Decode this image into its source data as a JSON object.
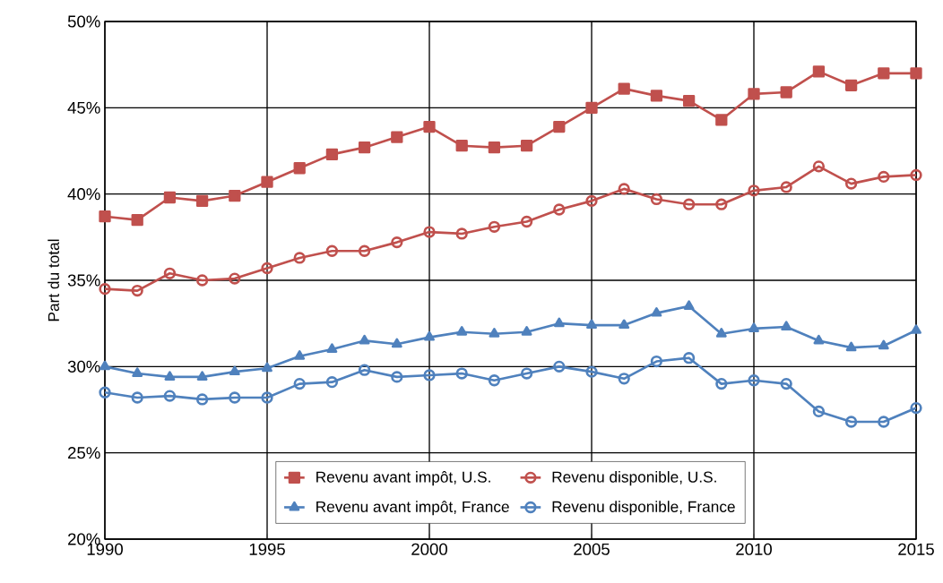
{
  "chart_data": {
    "type": "line",
    "ylabel": "Part du total",
    "x": [
      1990,
      1991,
      1992,
      1993,
      1994,
      1995,
      1996,
      1997,
      1998,
      1999,
      2000,
      2001,
      2002,
      2003,
      2004,
      2005,
      2006,
      2007,
      2008,
      2009,
      2010,
      2011,
      2012,
      2013,
      2014,
      2015
    ],
    "series": [
      {
        "name": "Revenu avant impôt, U.S.",
        "color": "#c0504d",
        "marker": "square",
        "values": [
          38.7,
          38.5,
          39.8,
          39.6,
          39.9,
          40.7,
          41.5,
          42.3,
          42.7,
          43.3,
          43.9,
          42.8,
          42.7,
          42.8,
          43.9,
          45.0,
          46.1,
          45.7,
          45.4,
          44.3,
          45.8,
          45.9,
          47.1,
          46.3,
          47.0,
          47.0
        ]
      },
      {
        "name": "Revenu disponible, U.S.",
        "color": "#c0504d",
        "marker": "circle",
        "values": [
          34.5,
          34.4,
          35.4,
          35.0,
          35.1,
          35.7,
          36.3,
          36.7,
          36.7,
          37.2,
          37.8,
          37.7,
          38.1,
          38.4,
          39.1,
          39.6,
          40.3,
          39.7,
          39.4,
          39.4,
          40.2,
          40.4,
          41.6,
          40.6,
          41.0,
          41.1
        ]
      },
      {
        "name": "Revenu avant impôt, France",
        "color": "#4f81bd",
        "marker": "triangle",
        "values": [
          30.0,
          29.6,
          29.4,
          29.4,
          29.7,
          29.9,
          30.6,
          31.0,
          31.5,
          31.3,
          31.7,
          32.0,
          31.9,
          32.0,
          32.5,
          32.4,
          32.4,
          33.1,
          33.5,
          31.9,
          32.2,
          32.3,
          31.5,
          31.1,
          31.2,
          32.1
        ]
      },
      {
        "name": "Revenu disponible, France",
        "color": "#4f81bd",
        "marker": "circle",
        "values": [
          28.5,
          28.2,
          28.3,
          28.1,
          28.2,
          28.2,
          29.0,
          29.1,
          29.8,
          29.4,
          29.5,
          29.6,
          29.2,
          29.6,
          30.0,
          29.7,
          29.3,
          30.3,
          30.5,
          29.0,
          29.2,
          29.0,
          27.4,
          26.8,
          26.8,
          27.6
        ]
      }
    ],
    "xlim": [
      1990,
      2015
    ],
    "xticks": [
      1990,
      1995,
      2000,
      2005,
      2010,
      2015
    ],
    "ylim": [
      20,
      50
    ],
    "yticks": [
      {
        "value": 20,
        "label": "20%"
      },
      {
        "value": 25,
        "label": "25%"
      },
      {
        "value": 30,
        "label": "30%"
      },
      {
        "value": 35,
        "label": "35%"
      },
      {
        "value": 40,
        "label": "40%"
      },
      {
        "value": 45,
        "label": "45%"
      },
      {
        "value": 50,
        "label": "50%"
      }
    ],
    "grid": true,
    "legend": "bottom",
    "line_style": "solid"
  }
}
